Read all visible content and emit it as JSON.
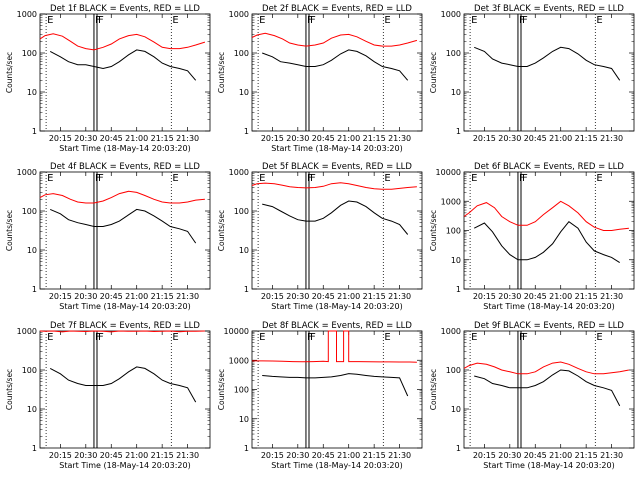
{
  "chart_data": [
    {
      "type": "line",
      "title": "Det 1f BLACK = Events, RED = LLD",
      "xlabel": "Start Time (18-May-14 20:03:20)",
      "ylabel": "Counts/sec",
      "yscale": "log",
      "ylim": [
        1,
        1000
      ],
      "y_ticks": [
        "1",
        "10",
        "100",
        "1000"
      ],
      "xlim": [
        20.05,
        21.72
      ],
      "x_ticks": [
        "20:15",
        "20:30",
        "20:45",
        "21:00",
        "21:15",
        "21:30"
      ],
      "markers": [
        "E",
        "F",
        "F",
        "E"
      ],
      "series": [
        {
          "name": "BLACK",
          "color": "#000000",
          "x": [
            20.15,
            20.25,
            20.33,
            20.42,
            20.5,
            20.58,
            20.67,
            20.75,
            20.83,
            20.92,
            21.0,
            21.08,
            21.17,
            21.25,
            21.33,
            21.42,
            21.5,
            21.58
          ],
          "y": [
            110,
            80,
            60,
            50,
            50,
            45,
            40,
            45,
            60,
            90,
            120,
            110,
            80,
            55,
            45,
            40,
            35,
            20
          ]
        },
        {
          "name": "RED",
          "color": "#ff0000",
          "x": [
            20.05,
            20.1,
            20.18,
            20.27,
            20.35,
            20.42,
            20.5,
            20.58,
            20.67,
            20.75,
            20.83,
            20.92,
            21.0,
            21.08,
            21.17,
            21.25,
            21.33,
            21.42,
            21.5,
            21.58,
            21.67
          ],
          "y": [
            230,
            280,
            310,
            270,
            200,
            150,
            130,
            120,
            140,
            170,
            230,
            280,
            300,
            260,
            190,
            140,
            130,
            130,
            140,
            160,
            190
          ]
        }
      ]
    },
    {
      "type": "line",
      "title": "Det 2f BLACK = Events, RED = LLD",
      "xlabel": "Start Time (18-May-14 20:03:20)",
      "ylabel": "Counts/sec",
      "yscale": "log",
      "ylim": [
        1,
        1000
      ],
      "y_ticks": [
        "1",
        "10",
        "100",
        "1000"
      ],
      "xlim": [
        20.05,
        21.72
      ],
      "x_ticks": [
        "20:15",
        "20:30",
        "20:45",
        "21:00",
        "21:15",
        "21:30"
      ],
      "markers": [
        "E",
        "F",
        "F",
        "E"
      ],
      "series": [
        {
          "name": "BLACK",
          "color": "#000000",
          "x": [
            20.15,
            20.25,
            20.33,
            20.42,
            20.5,
            20.58,
            20.67,
            20.75,
            20.83,
            20.92,
            21.0,
            21.08,
            21.17,
            21.25,
            21.33,
            21.42,
            21.5,
            21.58
          ],
          "y": [
            100,
            80,
            60,
            55,
            50,
            45,
            45,
            50,
            65,
            95,
            120,
            110,
            85,
            60,
            45,
            40,
            35,
            20
          ]
        },
        {
          "name": "RED",
          "color": "#ff0000",
          "x": [
            20.05,
            20.1,
            20.18,
            20.27,
            20.35,
            20.42,
            20.5,
            20.58,
            20.67,
            20.75,
            20.83,
            20.92,
            21.0,
            21.08,
            21.17,
            21.25,
            21.33,
            21.42,
            21.5,
            21.58,
            21.67
          ],
          "y": [
            250,
            290,
            320,
            280,
            230,
            180,
            160,
            150,
            160,
            180,
            240,
            290,
            300,
            260,
            200,
            160,
            150,
            150,
            160,
            180,
            210
          ]
        }
      ]
    },
    {
      "type": "line",
      "title": "Det 3f BLACK = Events, RED = LLD",
      "xlabel": "",
      "ylabel": "Counts/sec",
      "yscale": "log",
      "ylim": [
        1,
        1000
      ],
      "y_ticks": [
        "1",
        "10",
        "100",
        "1000"
      ],
      "xlim": [
        20.05,
        21.72
      ],
      "x_ticks": [
        "20:15",
        "20:30",
        "20:45",
        "21:00",
        "21:15",
        "21:30"
      ],
      "markers": [
        "E",
        "F",
        "F",
        "E"
      ],
      "series": [
        {
          "name": "BLACK",
          "color": "#000000",
          "x": [
            20.15,
            20.25,
            20.33,
            20.42,
            20.5,
            20.58,
            20.67,
            20.75,
            20.83,
            20.92,
            21.0,
            21.08,
            21.17,
            21.25,
            21.33,
            21.42,
            21.5,
            21.58
          ],
          "y": [
            140,
            110,
            70,
            55,
            50,
            45,
            45,
            55,
            75,
            110,
            140,
            130,
            95,
            65,
            50,
            45,
            40,
            20
          ]
        }
      ]
    },
    {
      "type": "line",
      "title": "Det 4f BLACK = Events, RED = LLD",
      "xlabel": "Start Time (18-May-14 20:03:20)",
      "ylabel": "Counts/sec",
      "yscale": "log",
      "ylim": [
        1,
        1000
      ],
      "y_ticks": [
        "1",
        "10",
        "100",
        "1000"
      ],
      "xlim": [
        20.05,
        21.72
      ],
      "x_ticks": [
        "20:15",
        "20:30",
        "20:45",
        "21:00",
        "21:15",
        "21:30"
      ],
      "markers": [
        "E",
        "F",
        "F",
        "E"
      ],
      "series": [
        {
          "name": "BLACK",
          "color": "#000000",
          "x": [
            20.15,
            20.25,
            20.33,
            20.42,
            20.5,
            20.58,
            20.67,
            20.75,
            20.83,
            20.92,
            21.0,
            21.08,
            21.17,
            21.25,
            21.33,
            21.42,
            21.5,
            21.58
          ],
          "y": [
            110,
            85,
            60,
            50,
            45,
            40,
            40,
            45,
            55,
            80,
            110,
            100,
            75,
            55,
            40,
            35,
            30,
            15
          ]
        },
        {
          "name": "RED",
          "color": "#ff0000",
          "x": [
            20.05,
            20.1,
            20.18,
            20.27,
            20.35,
            20.42,
            20.5,
            20.58,
            20.67,
            20.75,
            20.83,
            20.92,
            21.0,
            21.08,
            21.17,
            21.25,
            21.33,
            21.42,
            21.5,
            21.58,
            21.67
          ],
          "y": [
            220,
            260,
            280,
            250,
            200,
            170,
            160,
            160,
            180,
            220,
            280,
            320,
            300,
            250,
            200,
            170,
            160,
            160,
            170,
            190,
            200
          ]
        }
      ]
    },
    {
      "type": "line",
      "title": "Det 5f BLACK = Events, RED = LLD",
      "xlabel": "Start Time (18-May-14 20:03:20)",
      "ylabel": "Counts/sec",
      "yscale": "log",
      "ylim": [
        1,
        1000
      ],
      "y_ticks": [
        "1",
        "10",
        "100",
        "1000"
      ],
      "xlim": [
        20.05,
        21.72
      ],
      "x_ticks": [
        "20:15",
        "20:30",
        "20:45",
        "21:00",
        "21:15",
        "21:30"
      ],
      "markers": [
        "E",
        "F",
        "F",
        "E"
      ],
      "series": [
        {
          "name": "BLACK",
          "color": "#000000",
          "x": [
            20.15,
            20.25,
            20.33,
            20.42,
            20.5,
            20.58,
            20.67,
            20.75,
            20.83,
            20.92,
            21.0,
            21.08,
            21.17,
            21.25,
            21.33,
            21.42,
            21.5,
            21.58
          ],
          "y": [
            150,
            130,
            100,
            75,
            60,
            55,
            55,
            65,
            90,
            140,
            180,
            170,
            130,
            90,
            65,
            55,
            45,
            25
          ]
        },
        {
          "name": "RED",
          "color": "#ff0000",
          "x": [
            20.05,
            20.1,
            20.18,
            20.27,
            20.35,
            20.42,
            20.5,
            20.58,
            20.67,
            20.75,
            20.83,
            20.92,
            21.0,
            21.08,
            21.17,
            21.25,
            21.33,
            21.42,
            21.5,
            21.58,
            21.67
          ],
          "y": [
            450,
            500,
            520,
            500,
            460,
            420,
            400,
            390,
            400,
            430,
            500,
            530,
            500,
            450,
            400,
            370,
            360,
            360,
            380,
            400,
            420
          ]
        }
      ]
    },
    {
      "type": "line",
      "title": "Det 6f BLACK = Events, RED = LLD",
      "xlabel": "Start Time (18-May-14 20:03:20)",
      "ylabel": "Counts/sec",
      "yscale": "log",
      "ylim": [
        1,
        10000
      ],
      "y_ticks": [
        "1",
        "10",
        "100",
        "1000",
        "10000"
      ],
      "xlim": [
        20.05,
        21.72
      ],
      "x_ticks": [
        "20:15",
        "20:30",
        "20:45",
        "21:00",
        "21:15",
        "21:30"
      ],
      "markers": [
        "E",
        "F",
        "F",
        "E"
      ],
      "series": [
        {
          "name": "BLACK",
          "color": "#000000",
          "x": [
            20.15,
            20.25,
            20.33,
            20.42,
            20.5,
            20.58,
            20.67,
            20.75,
            20.83,
            20.92,
            21.0,
            21.08,
            21.17,
            21.25,
            21.33,
            21.42,
            21.5,
            21.58
          ],
          "y": [
            120,
            180,
            90,
            30,
            15,
            10,
            10,
            12,
            18,
            35,
            90,
            200,
            120,
            40,
            20,
            15,
            12,
            8
          ]
        },
        {
          "name": "RED",
          "color": "#ff0000",
          "x": [
            20.05,
            20.1,
            20.18,
            20.27,
            20.35,
            20.42,
            20.5,
            20.58,
            20.67,
            20.75,
            20.83,
            20.92,
            21.0,
            21.08,
            21.17,
            21.25,
            21.33,
            21.42,
            21.5,
            21.58,
            21.67
          ],
          "y": [
            300,
            400,
            700,
            900,
            600,
            300,
            200,
            150,
            150,
            200,
            350,
            600,
            1000,
            700,
            400,
            200,
            130,
            100,
            100,
            110,
            120
          ]
        }
      ]
    },
    {
      "type": "line",
      "title": "Det 7f BLACK = Events, RED = LLD",
      "xlabel": "Start Time (18-May-14 20:03:20)",
      "ylabel": "Counts/sec",
      "yscale": "log",
      "ylim": [
        1,
        1000
      ],
      "y_ticks": [
        "1",
        "10",
        "100",
        "1000"
      ],
      "xlim": [
        20.05,
        21.72
      ],
      "x_ticks": [
        "20:15",
        "20:30",
        "20:45",
        "21:00",
        "21:15",
        "21:30"
      ],
      "markers": [
        "E",
        "F",
        "F",
        "E"
      ],
      "series": [
        {
          "name": "BLACK",
          "color": "#000000",
          "x": [
            20.15,
            20.25,
            20.33,
            20.42,
            20.5,
            20.58,
            20.67,
            20.75,
            20.83,
            20.92,
            21.0,
            21.08,
            21.17,
            21.25,
            21.33,
            21.42,
            21.5,
            21.58
          ],
          "y": [
            110,
            80,
            55,
            45,
            40,
            40,
            40,
            45,
            60,
            90,
            120,
            110,
            80,
            55,
            45,
            40,
            35,
            15
          ]
        },
        {
          "name": "RED",
          "color": "#ff0000",
          "x": [
            20.05,
            20.1,
            20.18,
            20.27,
            20.35,
            20.42,
            20.5,
            20.58,
            20.67,
            20.75,
            20.83,
            20.92,
            21.0,
            21.08,
            21.17,
            21.25,
            21.33,
            21.42,
            21.5,
            21.58,
            21.67
          ],
          "y": [
            1000,
            980,
            1000,
            950,
            1000,
            980,
            970,
            1000,
            990,
            950,
            1000,
            980,
            990,
            1000,
            970,
            990,
            1000,
            960,
            990,
            980,
            1000
          ]
        }
      ]
    },
    {
      "type": "line",
      "title": "Det 8f BLACK = Events, RED = LLD",
      "xlabel": "Start Time (18-May-14 20:03:20)",
      "ylabel": "Counts/sec",
      "yscale": "log",
      "ylim": [
        1,
        10000
      ],
      "y_ticks": [
        "1",
        "10",
        "100",
        "1000",
        "10000"
      ],
      "xlim": [
        20.05,
        21.72
      ],
      "x_ticks": [
        "20:15",
        "20:30",
        "20:45",
        "21:00",
        "21:15",
        "21:30"
      ],
      "markers": [
        "E",
        "F",
        "F",
        "E"
      ],
      "series": [
        {
          "name": "BLACK",
          "color": "#000000",
          "x": [
            20.15,
            20.25,
            20.33,
            20.42,
            20.5,
            20.58,
            20.67,
            20.75,
            20.83,
            20.92,
            21.0,
            21.08,
            21.17,
            21.25,
            21.33,
            21.42,
            21.5,
            21.58
          ],
          "y": [
            300,
            280,
            270,
            260,
            260,
            250,
            250,
            260,
            270,
            300,
            350,
            330,
            300,
            280,
            270,
            260,
            250,
            60
          ]
        },
        {
          "name": "RED",
          "color": "#ff0000",
          "x": [
            20.05,
            20.15,
            20.25,
            20.35,
            20.45,
            20.55,
            20.65,
            20.75,
            20.8,
            20.8,
            20.88,
            20.88,
            20.95,
            20.95,
            21.0,
            21.0,
            21.1,
            21.2,
            21.3,
            21.4,
            21.5,
            21.6,
            21.67
          ],
          "y": [
            950,
            950,
            940,
            920,
            900,
            890,
            900,
            920,
            900,
            10000,
            10000,
            900,
            900,
            10000,
            10000,
            900,
            900,
            890,
            880,
            880,
            870,
            870,
            860
          ]
        }
      ]
    },
    {
      "type": "line",
      "title": "Det 9f BLACK = Events, RED = LLD",
      "xlabel": "Start Time (18-May-14 20:03:20)",
      "ylabel": "Counts/sec",
      "yscale": "log",
      "ylim": [
        1,
        1000
      ],
      "y_ticks": [
        "1",
        "10",
        "100",
        "1000"
      ],
      "xlim": [
        20.05,
        21.72
      ],
      "x_ticks": [
        "20:15",
        "20:30",
        "20:45",
        "21:00",
        "21:15",
        "21:30"
      ],
      "markers": [
        "E",
        "F",
        "F",
        "E"
      ],
      "series": [
        {
          "name": "BLACK",
          "color": "#000000",
          "x": [
            20.15,
            20.25,
            20.33,
            20.42,
            20.5,
            20.58,
            20.67,
            20.75,
            20.83,
            20.92,
            21.0,
            21.08,
            21.17,
            21.25,
            21.33,
            21.42,
            21.5,
            21.58
          ],
          "y": [
            70,
            60,
            45,
            40,
            35,
            35,
            35,
            40,
            50,
            75,
            100,
            95,
            70,
            50,
            40,
            35,
            30,
            12
          ]
        },
        {
          "name": "RED",
          "color": "#ff0000",
          "x": [
            20.05,
            20.1,
            20.18,
            20.27,
            20.35,
            20.42,
            20.5,
            20.58,
            20.67,
            20.75,
            20.83,
            20.92,
            21.0,
            21.08,
            21.17,
            21.25,
            21.33,
            21.42,
            21.5,
            21.58,
            21.67
          ],
          "y": [
            110,
            130,
            150,
            140,
            120,
            100,
            90,
            80,
            80,
            90,
            120,
            150,
            160,
            140,
            110,
            90,
            80,
            80,
            85,
            90,
            100
          ]
        }
      ]
    }
  ]
}
